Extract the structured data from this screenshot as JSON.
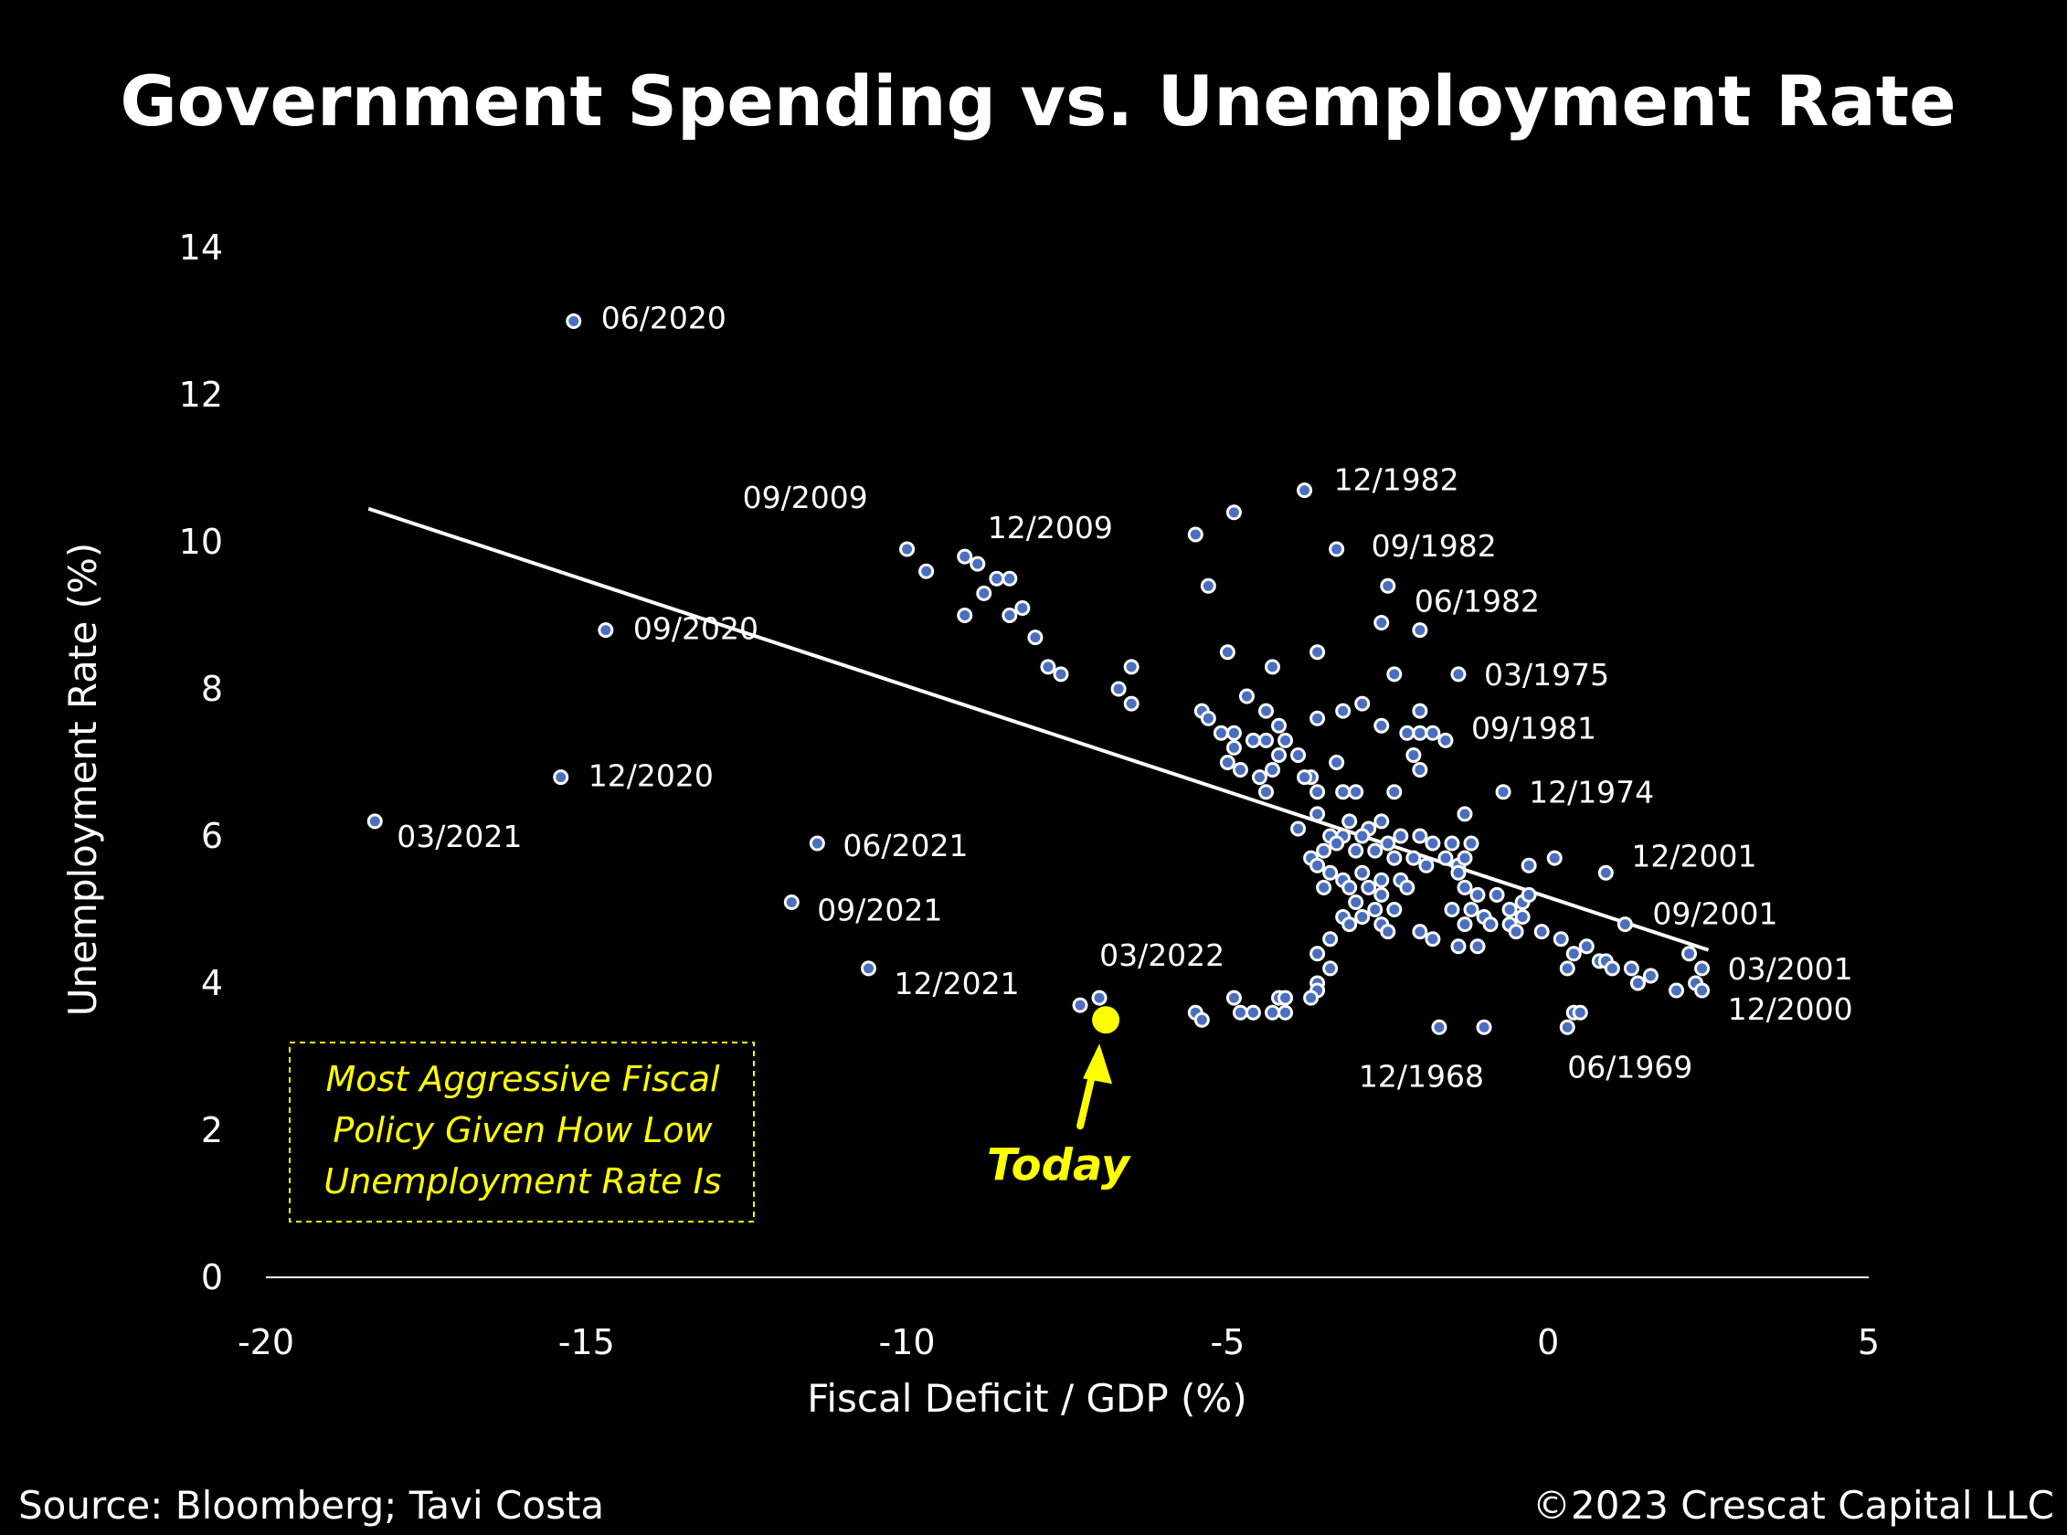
{
  "chart_data": {
    "type": "scatter",
    "title": "Government Spending vs. Unemployment Rate",
    "xlabel": "Fiscal Deficit / GDP (%)",
    "ylabel": "Unemployment Rate (%)",
    "xlim": [
      -20,
      5
    ],
    "ylim": [
      0,
      14
    ],
    "xticks": [
      "-20",
      "-15",
      "-10",
      "-5",
      "0",
      "5"
    ],
    "yticks": [
      "0",
      "2",
      "4",
      "6",
      "8",
      "10",
      "12",
      "14"
    ],
    "colors": {
      "points": "#4a6fbf",
      "highlight": "#ffff00",
      "trendline": "#ffffff",
      "background": "#000000"
    },
    "trendline": {
      "x": [
        -18.4,
        2.5
      ],
      "y": [
        10.45,
        4.45
      ]
    },
    "labeled_points": [
      {
        "x": -15.2,
        "y": 13.0,
        "label": "06/2020"
      },
      {
        "x": -14.7,
        "y": 8.8,
        "label": "09/2020"
      },
      {
        "x": -15.4,
        "y": 6.8,
        "label": "12/2020"
      },
      {
        "x": -18.3,
        "y": 6.2,
        "label": "03/2021"
      },
      {
        "x": -11.4,
        "y": 5.9,
        "label": "06/2021"
      },
      {
        "x": -11.8,
        "y": 5.1,
        "label": "09/2021"
      },
      {
        "x": -10.6,
        "y": 4.2,
        "label": "12/2021"
      },
      {
        "x": -7.0,
        "y": 3.8,
        "label": "03/2022"
      },
      {
        "x": -10.0,
        "y": 9.9,
        "label": "09/2009"
      },
      {
        "x": -9.1,
        "y": 9.8,
        "label": "12/2009"
      },
      {
        "x": -3.8,
        "y": 10.7,
        "label": "12/1982"
      },
      {
        "x": -3.3,
        "y": 9.9,
        "label": "09/1982"
      },
      {
        "x": -2.0,
        "y": 8.8,
        "label": "06/1982"
      },
      {
        "x": -1.4,
        "y": 8.2,
        "label": "03/1975"
      },
      {
        "x": -1.6,
        "y": 7.3,
        "label": "09/1981"
      },
      {
        "x": -0.7,
        "y": 6.6,
        "label": "12/1974"
      },
      {
        "x": 0.9,
        "y": 5.5,
        "label": "12/2001"
      },
      {
        "x": 1.2,
        "y": 4.8,
        "label": "09/2001"
      },
      {
        "x": 2.4,
        "y": 4.2,
        "label": "03/2001"
      },
      {
        "x": 2.4,
        "y": 3.9,
        "label": "12/2000"
      },
      {
        "x": -1.7,
        "y": 3.4,
        "label": "12/1968"
      },
      {
        "x": 0.3,
        "y": 3.4,
        "label": "06/1969"
      }
    ],
    "points": [
      [
        -9.7,
        9.6
      ],
      [
        -8.9,
        9.7
      ],
      [
        -8.6,
        9.5
      ],
      [
        -8.4,
        9.5
      ],
      [
        -8.8,
        9.3
      ],
      [
        -9.1,
        9.0
      ],
      [
        -8.4,
        9.0
      ],
      [
        -8.2,
        9.1
      ],
      [
        -8.0,
        8.7
      ],
      [
        -7.8,
        8.3
      ],
      [
        -7.6,
        8.2
      ],
      [
        -6.5,
        8.3
      ],
      [
        -6.7,
        8.0
      ],
      [
        -6.5,
        7.8
      ],
      [
        -5.5,
        10.1
      ],
      [
        -4.9,
        10.4
      ],
      [
        -5.3,
        9.4
      ],
      [
        -5.0,
        8.5
      ],
      [
        -4.3,
        8.3
      ],
      [
        -3.6,
        8.5
      ],
      [
        -2.5,
        9.4
      ],
      [
        -2.6,
        8.9
      ],
      [
        -2.4,
        8.2
      ],
      [
        -5.4,
        7.7
      ],
      [
        -4.7,
        7.9
      ],
      [
        -5.3,
        7.6
      ],
      [
        -5.1,
        7.4
      ],
      [
        -4.9,
        7.4
      ],
      [
        -4.4,
        7.7
      ],
      [
        -4.2,
        7.5
      ],
      [
        -4.6,
        7.3
      ],
      [
        -4.4,
        7.3
      ],
      [
        -4.9,
        7.2
      ],
      [
        -4.1,
        7.3
      ],
      [
        -3.6,
        7.6
      ],
      [
        -3.2,
        7.7
      ],
      [
        -2.9,
        7.8
      ],
      [
        -2.6,
        7.5
      ],
      [
        -2.2,
        7.4
      ],
      [
        -2.0,
        7.7
      ],
      [
        -2.0,
        7.4
      ],
      [
        -1.8,
        7.4
      ],
      [
        -2.1,
        7.1
      ],
      [
        -2.0,
        6.9
      ],
      [
        -5.0,
        7.0
      ],
      [
        -4.8,
        6.9
      ],
      [
        -4.5,
        6.8
      ],
      [
        -4.3,
        6.9
      ],
      [
        -4.2,
        7.1
      ],
      [
        -3.9,
        7.1
      ],
      [
        -3.7,
        6.8
      ],
      [
        -3.6,
        6.6
      ],
      [
        -4.4,
        6.6
      ],
      [
        -3.8,
        6.8
      ],
      [
        -3.3,
        7.0
      ],
      [
        -3.2,
        6.6
      ],
      [
        -3.0,
        6.6
      ],
      [
        -2.4,
        6.6
      ],
      [
        -1.3,
        6.3
      ],
      [
        -3.6,
        6.3
      ],
      [
        -3.9,
        6.1
      ],
      [
        -3.1,
        6.2
      ],
      [
        -2.8,
        6.1
      ],
      [
        -2.6,
        6.2
      ],
      [
        -3.4,
        6.0
      ],
      [
        -3.2,
        6.0
      ],
      [
        -2.9,
        6.0
      ],
      [
        -2.5,
        5.9
      ],
      [
        -2.3,
        6.0
      ],
      [
        -2.0,
        6.0
      ],
      [
        -1.8,
        5.9
      ],
      [
        -1.5,
        5.9
      ],
      [
        -1.2,
        5.9
      ],
      [
        -3.5,
        5.8
      ],
      [
        -3.3,
        5.9
      ],
      [
        -3.0,
        5.8
      ],
      [
        -2.7,
        5.8
      ],
      [
        -2.4,
        5.7
      ],
      [
        -2.1,
        5.7
      ],
      [
        -1.9,
        5.6
      ],
      [
        -1.6,
        5.7
      ],
      [
        -1.4,
        5.6
      ],
      [
        -1.3,
        5.7
      ],
      [
        -3.7,
        5.7
      ],
      [
        -3.6,
        5.6
      ],
      [
        -3.4,
        5.5
      ],
      [
        -3.2,
        5.4
      ],
      [
        -2.9,
        5.5
      ],
      [
        -2.6,
        5.4
      ],
      [
        -2.3,
        5.4
      ],
      [
        -2.2,
        5.3
      ],
      [
        -3.5,
        5.3
      ],
      [
        -3.1,
        5.3
      ],
      [
        -2.8,
        5.3
      ],
      [
        -2.6,
        5.2
      ],
      [
        -3.0,
        5.1
      ],
      [
        -2.7,
        5.0
      ],
      [
        -2.4,
        5.0
      ],
      [
        -3.2,
        4.9
      ],
      [
        -2.9,
        4.9
      ],
      [
        -2.6,
        4.8
      ],
      [
        -3.1,
        4.8
      ],
      [
        -2.5,
        4.7
      ],
      [
        -1.4,
        5.5
      ],
      [
        -1.3,
        5.3
      ],
      [
        -1.1,
        5.2
      ],
      [
        -0.8,
        5.2
      ],
      [
        -0.6,
        5.0
      ],
      [
        -0.4,
        5.1
      ],
      [
        -0.3,
        5.6
      ],
      [
        -1.5,
        5.0
      ],
      [
        -1.2,
        5.0
      ],
      [
        -1.0,
        4.9
      ],
      [
        -0.6,
        4.8
      ],
      [
        -0.4,
        4.9
      ],
      [
        -0.3,
        5.2
      ],
      [
        -1.3,
        4.8
      ],
      [
        -0.9,
        4.8
      ],
      [
        -0.5,
        4.7
      ],
      [
        -0.1,
        4.7
      ],
      [
        0.2,
        4.6
      ],
      [
        -1.4,
        4.5
      ],
      [
        -1.1,
        4.5
      ],
      [
        -2.0,
        4.7
      ],
      [
        -1.8,
        4.6
      ],
      [
        0.1,
        5.7
      ],
      [
        -3.4,
        4.6
      ],
      [
        -3.6,
        4.4
      ],
      [
        -3.4,
        4.2
      ],
      [
        -3.6,
        4.0
      ],
      [
        -3.6,
        3.9
      ],
      [
        -3.7,
        3.8
      ],
      [
        -4.2,
        3.8
      ],
      [
        -4.1,
        3.8
      ],
      [
        -4.9,
        3.8
      ],
      [
        -5.5,
        3.6
      ],
      [
        -5.4,
        3.5
      ],
      [
        -4.8,
        3.6
      ],
      [
        -4.6,
        3.6
      ],
      [
        -4.3,
        3.6
      ],
      [
        -4.1,
        3.6
      ],
      [
        -7.3,
        3.7
      ],
      [
        -1.0,
        3.4
      ],
      [
        0.6,
        4.5
      ],
      [
        0.4,
        4.4
      ],
      [
        0.8,
        4.3
      ],
      [
        0.9,
        4.3
      ],
      [
        1.0,
        4.2
      ],
      [
        1.3,
        4.2
      ],
      [
        1.4,
        4.0
      ],
      [
        1.6,
        4.1
      ],
      [
        2.2,
        4.4
      ],
      [
        2.0,
        3.9
      ],
      [
        2.3,
        4.0
      ],
      [
        0.3,
        4.2
      ],
      [
        0.4,
        3.6
      ],
      [
        0.5,
        3.6
      ]
    ],
    "highlight_point": {
      "x": -6.9,
      "y": 3.5,
      "label": "Today"
    },
    "annotation": [
      "Most Aggressive Fiscal",
      "Policy Given How Low",
      "Unemployment Rate Is"
    ]
  },
  "footer": {
    "source": "Source: Bloomberg; Tavi Costa",
    "copyright": "©2023 Crescat Capital LLC"
  }
}
